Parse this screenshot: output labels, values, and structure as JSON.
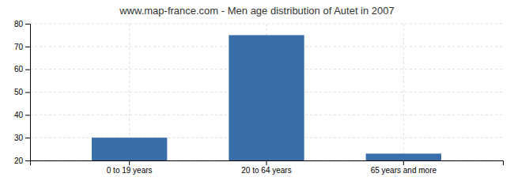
{
  "chart_data": {
    "type": "bar",
    "title": "www.map-france.com - Men age distribution of Autet in 2007",
    "categories": [
      "0 to 19 years",
      "20 to 64 years",
      "65 years and more"
    ],
    "values": [
      30,
      75,
      23
    ],
    "color": "#3a6ea8",
    "ylim": [
      20,
      80
    ],
    "yticks": [
      20,
      30,
      40,
      50,
      60,
      70,
      80
    ],
    "grid": true
  }
}
